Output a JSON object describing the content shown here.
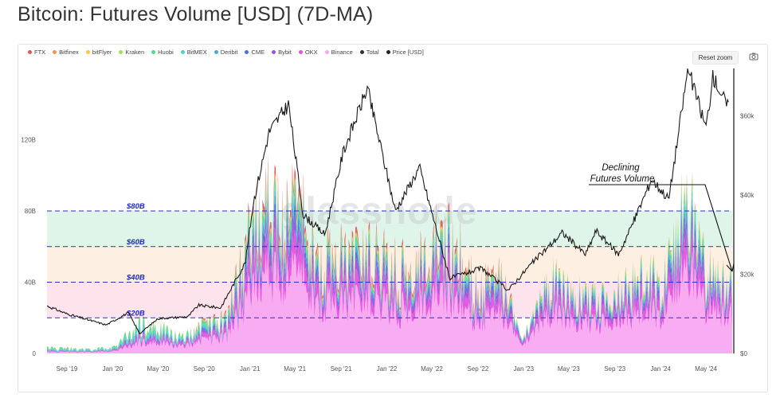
{
  "page": {
    "title": "Bitcoin: Futures Volume [USD] (7D-MA)",
    "watermark": "glassnode",
    "reset_zoom_label": "Reset zoom",
    "camera_icon": "camera-icon"
  },
  "chart_data": {
    "type": "area",
    "stacked": true,
    "title": "Bitcoin: Futures Volume [USD] (7D-MA)",
    "legend": [
      {
        "name": "FTX",
        "color": "#e05a5a"
      },
      {
        "name": "Bitfinex",
        "color": "#f0954a"
      },
      {
        "name": "bitFlyer",
        "color": "#f2cc3c"
      },
      {
        "name": "Kraken",
        "color": "#a8dc5a"
      },
      {
        "name": "Huobi",
        "color": "#52dc8c"
      },
      {
        "name": "BitMEX",
        "color": "#4bd4c8"
      },
      {
        "name": "Deribit",
        "color": "#48a8dc"
      },
      {
        "name": "CME",
        "color": "#4a70dc"
      },
      {
        "name": "Bybit",
        "color": "#a050dc"
      },
      {
        "name": "OKX",
        "color": "#e850e0"
      },
      {
        "name": "Binance",
        "color": "#f8a8f0"
      },
      {
        "name": "Total",
        "color": "#333333"
      },
      {
        "name": "Price [USD]",
        "color": "#222222"
      }
    ],
    "legend_position": "top-left",
    "x_ticks": [
      "Sep '19",
      "Jan '20",
      "May '20",
      "Sep '20",
      "Jan '21",
      "May '21",
      "Sep '21",
      "Jan '22",
      "May '22",
      "Sep '22",
      "Jan '23",
      "May '23",
      "Sep '23",
      "Jan '24",
      "May '24"
    ],
    "x_range": [
      "2019-07-10",
      "2024-07-10"
    ],
    "y_left_ticks": [
      "0",
      "40B",
      "80B",
      "120B"
    ],
    "y_left_range": [
      0,
      160
    ],
    "y_right_ticks": [
      "$0",
      "$20k",
      "$40k",
      "$60k"
    ],
    "y_right_range": [
      0,
      72
    ],
    "thresholds": [
      {
        "label": "$80B",
        "value": 80
      },
      {
        "label": "$60B",
        "value": 60
      },
      {
        "label": "$40B",
        "value": 40
      },
      {
        "label": "$20B",
        "value": 20
      }
    ],
    "bands": [
      {
        "from": 60,
        "to": 80,
        "color": "#dff5ea"
      },
      {
        "from": 40,
        "to": 60,
        "color": "#fdefe2"
      },
      {
        "from": 20,
        "to": 40,
        "color": "#fde3ec"
      }
    ],
    "volume_series_approx": [
      {
        "date": "2019-07-10",
        "total": 3
      },
      {
        "date": "2019-09-01",
        "total": 2.5
      },
      {
        "date": "2019-11-01",
        "total": 2
      },
      {
        "date": "2020-01-01",
        "total": 3
      },
      {
        "date": "2020-03-12",
        "total": 14
      },
      {
        "date": "2020-05-10",
        "total": 13
      },
      {
        "date": "2020-07-01",
        "total": 8
      },
      {
        "date": "2020-09-01",
        "total": 15
      },
      {
        "date": "2020-11-01",
        "total": 18
      },
      {
        "date": "2021-01-10",
        "total": 65
      },
      {
        "date": "2021-02-20",
        "total": 85
      },
      {
        "date": "2021-04-15",
        "total": 70
      },
      {
        "date": "2021-05-19",
        "total": 78
      },
      {
        "date": "2021-07-01",
        "total": 45
      },
      {
        "date": "2021-09-07",
        "total": 55
      },
      {
        "date": "2021-11-10",
        "total": 50
      },
      {
        "date": "2022-01-20",
        "total": 48
      },
      {
        "date": "2022-03-01",
        "total": 40
      },
      {
        "date": "2022-05-10",
        "total": 58
      },
      {
        "date": "2022-06-15",
        "total": 60
      },
      {
        "date": "2022-09-01",
        "total": 32
      },
      {
        "date": "2022-11-09",
        "total": 38
      },
      {
        "date": "2023-01-01",
        "total": 8
      },
      {
        "date": "2023-03-15",
        "total": 38
      },
      {
        "date": "2023-05-01",
        "total": 30
      },
      {
        "date": "2023-08-17",
        "total": 28
      },
      {
        "date": "2023-10-25",
        "total": 36
      },
      {
        "date": "2024-01-11",
        "total": 40
      },
      {
        "date": "2024-03-12",
        "total": 78
      },
      {
        "date": "2024-05-01",
        "total": 40
      },
      {
        "date": "2024-07-05",
        "total": 38
      }
    ],
    "price_series_approx": [
      {
        "date": "2019-07-10",
        "price": 12
      },
      {
        "date": "2019-09-01",
        "price": 10
      },
      {
        "date": "2019-12-15",
        "price": 7.2
      },
      {
        "date": "2020-02-12",
        "price": 10.3
      },
      {
        "date": "2020-03-13",
        "price": 5
      },
      {
        "date": "2020-05-01",
        "price": 8.8
      },
      {
        "date": "2020-07-20",
        "price": 9.3
      },
      {
        "date": "2020-08-17",
        "price": 12.2
      },
      {
        "date": "2020-10-15",
        "price": 11.5
      },
      {
        "date": "2020-12-20",
        "price": 23
      },
      {
        "date": "2021-01-10",
        "price": 38
      },
      {
        "date": "2021-02-21",
        "price": 56
      },
      {
        "date": "2021-04-14",
        "price": 63
      },
      {
        "date": "2021-05-23",
        "price": 35
      },
      {
        "date": "2021-07-20",
        "price": 30
      },
      {
        "date": "2021-09-07",
        "price": 51
      },
      {
        "date": "2021-11-10",
        "price": 67
      },
      {
        "date": "2022-01-24",
        "price": 36
      },
      {
        "date": "2022-03-29",
        "price": 47
      },
      {
        "date": "2022-06-18",
        "price": 19
      },
      {
        "date": "2022-09-10",
        "price": 21.5
      },
      {
        "date": "2022-11-21",
        "price": 16
      },
      {
        "date": "2023-01-20",
        "price": 22.5
      },
      {
        "date": "2023-04-14",
        "price": 30.5
      },
      {
        "date": "2023-06-15",
        "price": 25
      },
      {
        "date": "2023-07-13",
        "price": 31
      },
      {
        "date": "2023-09-11",
        "price": 25
      },
      {
        "date": "2023-10-24",
        "price": 34
      },
      {
        "date": "2023-12-08",
        "price": 44
      },
      {
        "date": "2024-01-23",
        "price": 39
      },
      {
        "date": "2024-03-14",
        "price": 72
      },
      {
        "date": "2024-05-01",
        "price": 57
      },
      {
        "date": "2024-05-20",
        "price": 70
      },
      {
        "date": "2024-06-30",
        "price": 62
      }
    ],
    "annotation": {
      "line1": "Declining",
      "line2": "Futures Volume"
    }
  }
}
